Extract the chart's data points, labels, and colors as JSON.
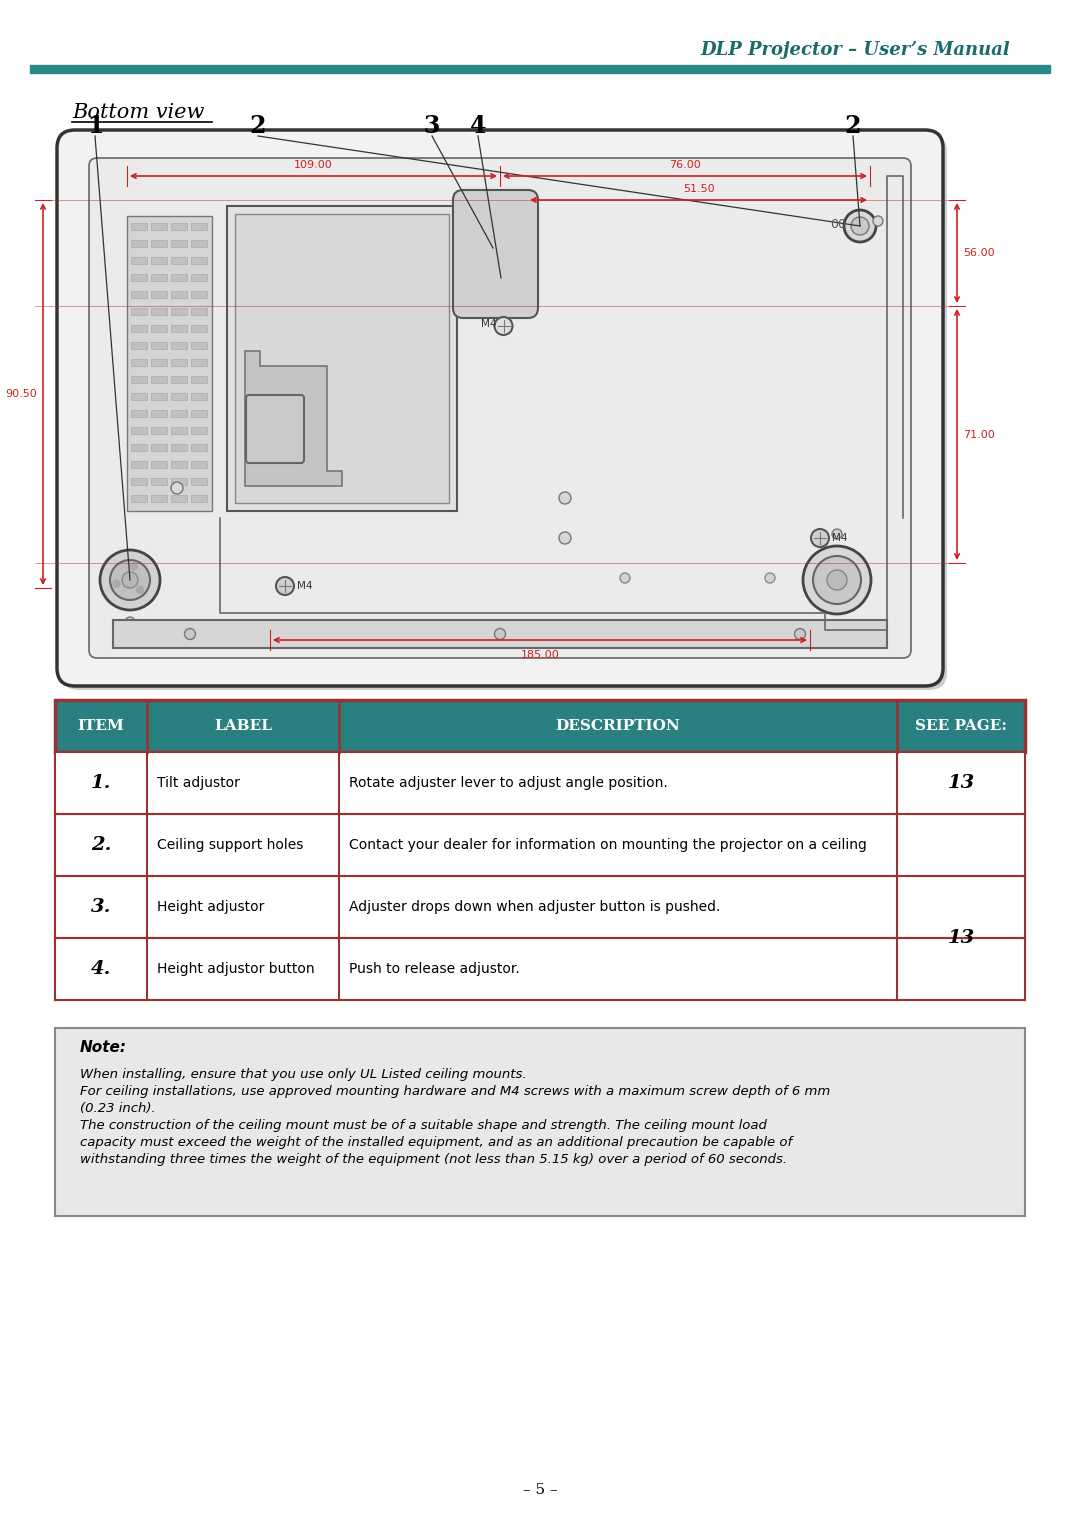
{
  "page_bg": "#ffffff",
  "header_title": "DLP Projector – User’s Manual",
  "header_title_color": "#1a6b6b",
  "header_line_color": "#2a8a8a",
  "section_title": "Bottom view",
  "red_dim_color": "#cc2222",
  "table_header_bg": "#2a8080",
  "table_header_text": "#ffffff",
  "table_border_color": "#993333",
  "table_items": [
    {
      "num": "1.",
      "label": "Tilt adjustor",
      "desc": "Rotate adjuster lever to adjust angle position.",
      "page": "13"
    },
    {
      "num": "2.",
      "label": "Ceiling support holes",
      "desc": "Contact your dealer for information on mounting the projector on a ceiling",
      "page": ""
    },
    {
      "num": "3.",
      "label": "Height adjustor",
      "desc": "Adjuster drops down when adjuster button is pushed.",
      "page": "13"
    },
    {
      "num": "4.",
      "label": "Height adjustor button",
      "desc": "Push to release adjustor.",
      "page": ""
    }
  ],
  "note_bg": "#e8e8e8",
  "note_border": "#888888",
  "note_title": "Note:",
  "note_text": "When installing, ensure that you use only UL Listed ceiling mounts.\nFor ceiling installations, use approved mounting hardware and M4 screws with a maximum screw depth of 6 mm (0.23 inch).\nThe construction of the ceiling mount must be of a suitable shape and strength. The ceiling mount load capacity must exceed the weight of the installed equipment, and as an additional precaution be capable of withstanding three times the weight of the equipment (not less than 5.15 kg) over a period of 60 seconds.",
  "page_num": "– 5 –",
  "dim_109": "109.00",
  "dim_76": "76.00",
  "dim_51": "51.50",
  "dim_185": "185.00",
  "dim_90": "90.50",
  "dim_56": "56.00",
  "dim_71": "71.00",
  "callout_numbers": [
    "1",
    "2",
    "3",
    "4",
    "2"
  ]
}
